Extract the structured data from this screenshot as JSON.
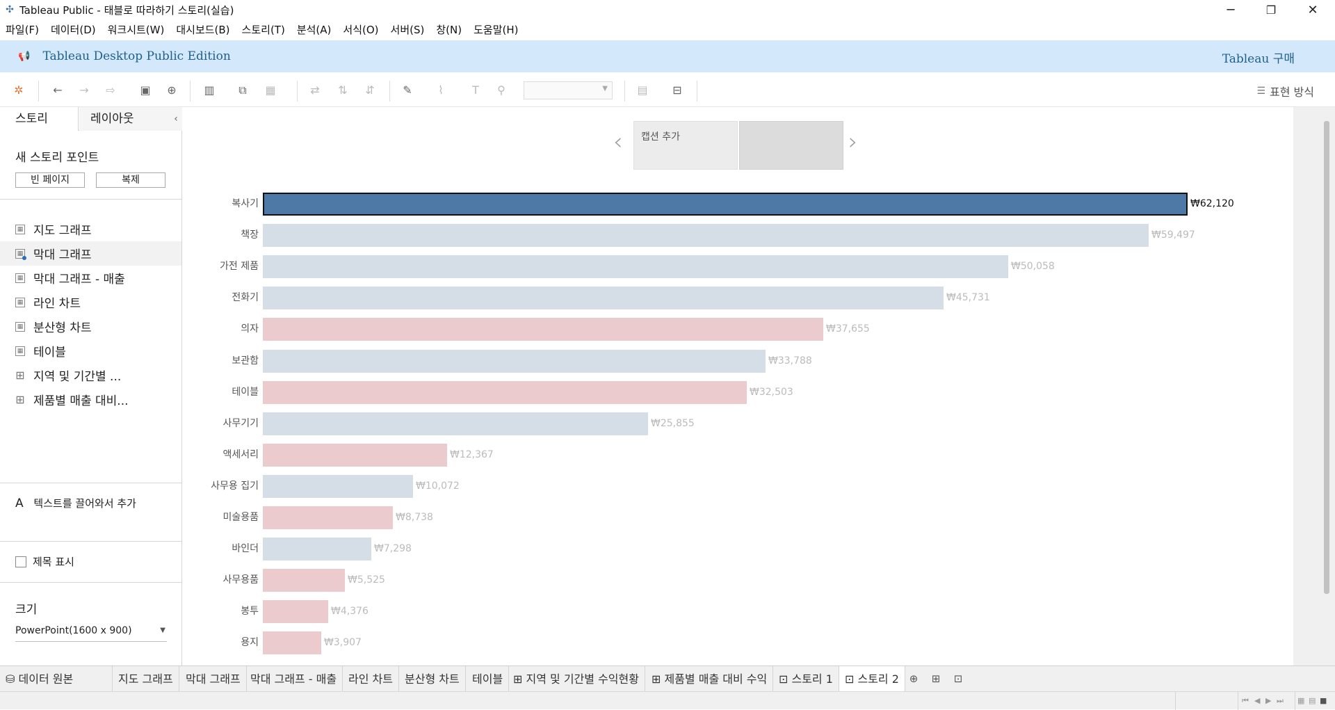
{
  "window": {
    "title": "Tableau Public - 태블로 따라하기 스토리(실습)",
    "minimize_icon": "─",
    "restore_icon": "❐",
    "close_icon": "✕"
  },
  "menu": {
    "items": [
      "파일(F)",
      "데이터(D)",
      "워크시트(W)",
      "대시보드(B)",
      "스토리(T)",
      "분석(A)",
      "서식(O)",
      "서버(S)",
      "창(N)",
      "도움말(H)"
    ]
  },
  "banner": {
    "edition": "Tableau Desktop Public Edition",
    "buy_label": "Tableau 구매"
  },
  "toolbar": {
    "show_me_label": "표현 방식"
  },
  "left_pane": {
    "tabs": [
      "스토리",
      "레이아웃"
    ],
    "collapse_icon": "‹",
    "new_story_point": "새 스토리 포인트",
    "blank_page_button": "빈 페이지",
    "duplicate_button": "복제",
    "sheets": [
      {
        "label": "지도 그래프",
        "type": "worksheet"
      },
      {
        "label": "막대 그래프",
        "type": "worksheet",
        "selected": true
      },
      {
        "label": "막대 그래프 - 매출",
        "type": "worksheet"
      },
      {
        "label": "라인 차트",
        "type": "worksheet"
      },
      {
        "label": "분산형 차트",
        "type": "worksheet"
      },
      {
        "label": "테이블",
        "type": "worksheet"
      },
      {
        "label": "지역 및 기간별 ...",
        "type": "dashboard"
      },
      {
        "label": "제품별 매출 대비...",
        "type": "dashboard"
      }
    ],
    "drag_text": "텍스트를 끌어와서 추가",
    "drag_text_icon": "A",
    "show_title_label": "제목 표시",
    "size_heading": "크기",
    "size_value": "PowerPoint(1600 x 900)"
  },
  "story": {
    "caption_placeholder": "캡션 추가",
    "prev_icon": "‹",
    "next_icon": "›"
  },
  "chart_data": {
    "type": "bar",
    "orientation": "horizontal",
    "categories": [
      "복사기",
      "책장",
      "가전 제품",
      "전화기",
      "의자",
      "보관함",
      "테이블",
      "사무기기",
      "액세서리",
      "사무용 집기",
      "미술용품",
      "바인더",
      "사무용품",
      "봉투",
      "용지"
    ],
    "values": [
      62120,
      59497,
      50058,
      45731,
      37655,
      33788,
      32503,
      25855,
      12367,
      10072,
      8738,
      7298,
      5525,
      4376,
      3907
    ],
    "labels": [
      "₩62,120",
      "₩59,497",
      "₩50,058",
      "₩45,731",
      "₩37,655",
      "₩33,788",
      "₩32,503",
      "₩25,855",
      "₩12,367",
      "₩10,072",
      "₩8,738",
      "₩7,298",
      "₩5,525",
      "₩4,376",
      "₩3,907"
    ],
    "colors": [
      "#4e79a7",
      "#d5dde6",
      "#d5dde6",
      "#d5dde6",
      "#ebcbce",
      "#d5dde6",
      "#ebcbce",
      "#d5dde6",
      "#ebcbce",
      "#d5dde6",
      "#ebcbce",
      "#d5dde6",
      "#ebcbce",
      "#ebcbce",
      "#ebcbce"
    ],
    "highlighted_index": 0,
    "xlim": [
      0,
      62120
    ]
  },
  "bottom_tabs": {
    "data_source": "데이터 원본",
    "data_source_icon": "⛁",
    "sheets": [
      "지도 그래프",
      "막대 그래프",
      "막대 그래프 - 매출",
      "라인 차트",
      "분산형 차트",
      "테이블",
      "⊞ 지역 및 기간별 수익현황",
      "⊞ 제품별 매출 대비 수익",
      "⊡ 스토리 1",
      "⊡ 스토리 2"
    ],
    "active_index": 9,
    "new_worksheet_icon": "⊕",
    "new_dashboard_icon": "⊞",
    "new_story_icon": "⊡"
  }
}
